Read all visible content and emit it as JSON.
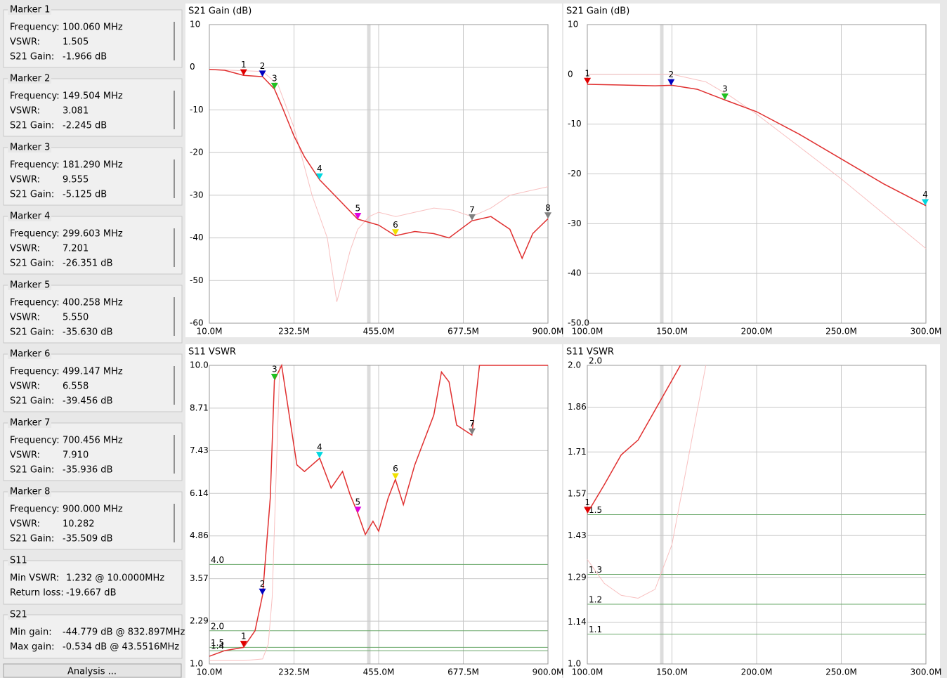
{
  "sidebar": {
    "field_labels": {
      "frequency": "Frequency:",
      "vswr": "VSWR:",
      "gain": "S21 Gain:"
    },
    "markers": [
      {
        "name": "Marker 1",
        "color": "#e00000",
        "frequency": "100.060 MHz",
        "vswr": "1.505",
        "gain": "-1.966 dB"
      },
      {
        "name": "Marker 2",
        "color": "#0000c0",
        "frequency": "149.504 MHz",
        "vswr": "3.081",
        "gain": "-2.245 dB"
      },
      {
        "name": "Marker 3",
        "color": "#20c020",
        "frequency": "181.290 MHz",
        "vswr": "9.555",
        "gain": "-5.125 dB"
      },
      {
        "name": "Marker 4",
        "color": "#00d8e0",
        "frequency": "299.603 MHz",
        "vswr": "7.201",
        "gain": "-26.351 dB"
      },
      {
        "name": "Marker 5",
        "color": "#e000e0",
        "frequency": "400.258 MHz",
        "vswr": "5.550",
        "gain": "-35.630 dB"
      },
      {
        "name": "Marker 6",
        "color": "#f0e000",
        "frequency": "499.147 MHz",
        "vswr": "6.558",
        "gain": "-39.456 dB"
      },
      {
        "name": "Marker 7",
        "color": "#808080",
        "frequency": "700.456 MHz",
        "vswr": "7.910",
        "gain": "-35.936 dB"
      },
      {
        "name": "Marker 8",
        "color": "#808080",
        "frequency": "900.000 MHz",
        "vswr": "10.282",
        "gain": "-35.509 dB"
      }
    ],
    "s11": {
      "title": "S11",
      "rows": [
        [
          "Min VSWR:",
          "1.232 @ 10.0000MHz"
        ],
        [
          "Return loss:",
          "-19.667 dB"
        ]
      ]
    },
    "s21": {
      "title": "S21",
      "rows": [
        [
          "Min gain:",
          "-44.779 dB @ 832.897MHz"
        ],
        [
          "Max gain:",
          "-0.534 dB @ 43.5516MHz"
        ]
      ]
    },
    "button": "Analysis ..."
  },
  "chart_data": [
    {
      "type": "line",
      "title": "S21 Gain (dB)",
      "grid": true,
      "xlim": [
        10,
        900
      ],
      "xticks": [
        {
          "value": 10,
          "label": "10.0M"
        },
        {
          "value": 232.5,
          "label": "232.5M"
        },
        {
          "value": 455,
          "label": "455.0M"
        },
        {
          "value": 677.5,
          "label": "677.5M"
        },
        {
          "value": 900,
          "label": "900.0M"
        }
      ],
      "ylim": [
        -60,
        10
      ],
      "yticks": [
        10,
        0,
        -10,
        -20,
        -30,
        -40,
        -50,
        -60
      ],
      "series": [
        {
          "color": "#f8c0c0",
          "x": [
            10,
            100,
            150,
            190,
            232,
            280,
            320,
            345,
            360,
            380,
            400,
            430,
            455,
            500,
            550,
            600,
            650,
            700,
            750,
            800,
            850,
            900
          ],
          "values": [
            -0.5,
            -0.8,
            -1,
            -4,
            -14,
            -30,
            -40,
            -55,
            -50,
            -43,
            -38,
            -35,
            -34,
            -35,
            -34,
            -33,
            -33.5,
            -35,
            -33,
            -30,
            -29,
            -28
          ]
        },
        {
          "color": "#e03030",
          "x": [
            10,
            50,
            100,
            150,
            181,
            200,
            232,
            260,
            300,
            350,
            400,
            455,
            499,
            550,
            600,
            640,
            700,
            750,
            800,
            832,
            860,
            900
          ],
          "values": [
            -0.5,
            -0.7,
            -1.9,
            -2.2,
            -5.1,
            -9,
            -16,
            -21,
            -26.4,
            -31,
            -35.6,
            -37,
            -39.5,
            -38.5,
            -39,
            -40,
            -36,
            -35,
            -38,
            -44.8,
            -39,
            -35.5
          ]
        }
      ],
      "markers": [
        {
          "label": "1",
          "color": "#e00000",
          "x": 100.06,
          "y": -1.966
        },
        {
          "label": "2",
          "color": "#0000c0",
          "x": 149.504,
          "y": -2.245
        },
        {
          "label": "3",
          "color": "#20c020",
          "x": 181.29,
          "y": -5.125
        },
        {
          "label": "4",
          "color": "#00d8e0",
          "x": 299.603,
          "y": -26.351
        },
        {
          "label": "5",
          "color": "#e000e0",
          "x": 400.258,
          "y": -35.63
        },
        {
          "label": "6",
          "color": "#f0e000",
          "x": 499.147,
          "y": -39.456
        },
        {
          "label": "7",
          "color": "#808080",
          "x": 700.456,
          "y": -35.936
        },
        {
          "label": "8",
          "color": "#808080",
          "x": 900,
          "y": -35.509
        }
      ]
    },
    {
      "type": "line",
      "title": "S21 Gain (dB)",
      "grid": true,
      "xlim": [
        100,
        300
      ],
      "xticks": [
        {
          "value": 100,
          "label": "100.0M"
        },
        {
          "value": 150,
          "label": "150.0M"
        },
        {
          "value": 200,
          "label": "200.0M"
        },
        {
          "value": 250,
          "label": "250.0M"
        },
        {
          "value": 300,
          "label": "300.0M"
        }
      ],
      "ylim": [
        -50,
        10
      ],
      "yticks": [
        10,
        0,
        -10,
        -20,
        -30,
        -40,
        {
          "value": -50,
          "label": "-50.0"
        }
      ],
      "series": [
        {
          "color": "#f8c0c0",
          "x": [
            100,
            150,
            170,
            185,
            200,
            225,
            250,
            275,
            300
          ],
          "values": [
            0,
            0,
            -1.5,
            -4.5,
            -8,
            -14.5,
            -21,
            -28,
            -35
          ]
        },
        {
          "color": "#e03030",
          "x": [
            100,
            140,
            150,
            165,
            181,
            200,
            225,
            250,
            275,
            300
          ],
          "values": [
            -2,
            -2.3,
            -2.2,
            -3,
            -5.1,
            -7.5,
            -12,
            -17,
            -22,
            -26.4
          ]
        }
      ],
      "markers": [
        {
          "label": "1",
          "color": "#e00000",
          "x": 100.06,
          "y": -1.966
        },
        {
          "label": "2",
          "color": "#0000c0",
          "x": 149.504,
          "y": -2.245
        },
        {
          "label": "3",
          "color": "#20c020",
          "x": 181.29,
          "y": -5.125
        },
        {
          "label": "4",
          "color": "#00d8e0",
          "x": 299.603,
          "y": -26.351
        }
      ]
    },
    {
      "type": "line",
      "title": "S11 VSWR",
      "grid": true,
      "xlim": [
        10,
        900
      ],
      "xticks": [
        {
          "value": 10,
          "label": "10.0M"
        },
        {
          "value": 232.5,
          "label": "232.5M"
        },
        {
          "value": 455,
          "label": "455.0M"
        },
        {
          "value": 677.5,
          "label": "677.5M"
        },
        {
          "value": 900,
          "label": "900.0M"
        }
      ],
      "ylim": [
        1,
        10
      ],
      "yticks": [
        {
          "value": 10,
          "label": "10.0"
        },
        8.71,
        7.43,
        6.14,
        4.86,
        3.57,
        2.29,
        {
          "value": 1,
          "label": "1.0"
        }
      ],
      "reference_lines": [
        {
          "value": 4,
          "label": "4.0"
        },
        {
          "value": 2,
          "label": "2.0"
        },
        {
          "value": 1.5,
          "label": "1.5"
        },
        {
          "value": 1.4,
          "label": "1.4"
        }
      ],
      "series": [
        {
          "color": "#f8c0c0",
          "x": [
            10,
            100,
            150,
            165,
            175,
            185,
            195
          ],
          "values": [
            1.1,
            1.1,
            1.15,
            1.6,
            3,
            6.5,
            10
          ]
        },
        {
          "color": "#e03030",
          "x": [
            10,
            50,
            100,
            130,
            150,
            170,
            181,
            200,
            220,
            240,
            260,
            300,
            330,
            360,
            380,
            400,
            420,
            440,
            455,
            480,
            499,
            520,
            550,
            600,
            620,
            640,
            660,
            700,
            720,
            900
          ],
          "values": [
            1.23,
            1.4,
            1.5,
            2,
            3.08,
            6,
            9.55,
            10,
            8.5,
            7,
            6.8,
            7.2,
            6.3,
            6.8,
            6.1,
            5.55,
            4.9,
            5.3,
            5,
            6,
            6.56,
            5.8,
            7,
            8.5,
            9.8,
            9.5,
            8.2,
            7.9,
            10,
            10
          ]
        }
      ],
      "markers": [
        {
          "label": "1",
          "color": "#e00000",
          "x": 100.06,
          "y": 1.505
        },
        {
          "label": "2",
          "color": "#0000c0",
          "x": 149.504,
          "y": 3.081
        },
        {
          "label": "3",
          "color": "#20c020",
          "x": 181.29,
          "y": 9.555
        },
        {
          "label": "4",
          "color": "#00d8e0",
          "x": 299.603,
          "y": 7.201
        },
        {
          "label": "5",
          "color": "#e000e0",
          "x": 400.258,
          "y": 5.55
        },
        {
          "label": "6",
          "color": "#f0e000",
          "x": 499.147,
          "y": 6.558
        },
        {
          "label": "7",
          "color": "#808080",
          "x": 700.456,
          "y": 7.91
        }
      ]
    },
    {
      "type": "line",
      "title": "S11 VSWR",
      "grid": true,
      "xlim": [
        100,
        300
      ],
      "xticks": [
        {
          "value": 100,
          "label": "100.0M"
        },
        {
          "value": 150,
          "label": "150.0M"
        },
        {
          "value": 200,
          "label": "200.0M"
        },
        {
          "value": 250,
          "label": "250.0M"
        },
        {
          "value": 300,
          "label": "300.0M"
        }
      ],
      "ylim": [
        1,
        2
      ],
      "yticks": [
        {
          "value": 2,
          "label": "2.0"
        },
        1.86,
        1.71,
        1.57,
        1.43,
        1.29,
        1.14,
        {
          "value": 1,
          "label": "1.0"
        }
      ],
      "reference_lines": [
        {
          "value": 2,
          "label": "2.0"
        },
        {
          "value": 1.5,
          "label": "1.5"
        },
        {
          "value": 1.3,
          "label": "1.3"
        },
        {
          "value": 1.2,
          "label": "1.2"
        },
        {
          "value": 1.1,
          "label": "1.1"
        }
      ],
      "series": [
        {
          "color": "#f8c0c0",
          "x": [
            100,
            110,
            120,
            130,
            140,
            150,
            160,
            165,
            170
          ],
          "values": [
            1.35,
            1.27,
            1.23,
            1.22,
            1.25,
            1.4,
            1.7,
            1.85,
            2
          ]
        },
        {
          "color": "#e03030",
          "x": [
            100,
            110,
            120,
            130,
            140,
            150,
            155
          ],
          "values": [
            1.505,
            1.6,
            1.7,
            1.75,
            1.85,
            1.95,
            2
          ]
        }
      ],
      "markers": [
        {
          "label": "1",
          "color": "#e00000",
          "x": 100.06,
          "y": 1.505
        }
      ]
    }
  ]
}
